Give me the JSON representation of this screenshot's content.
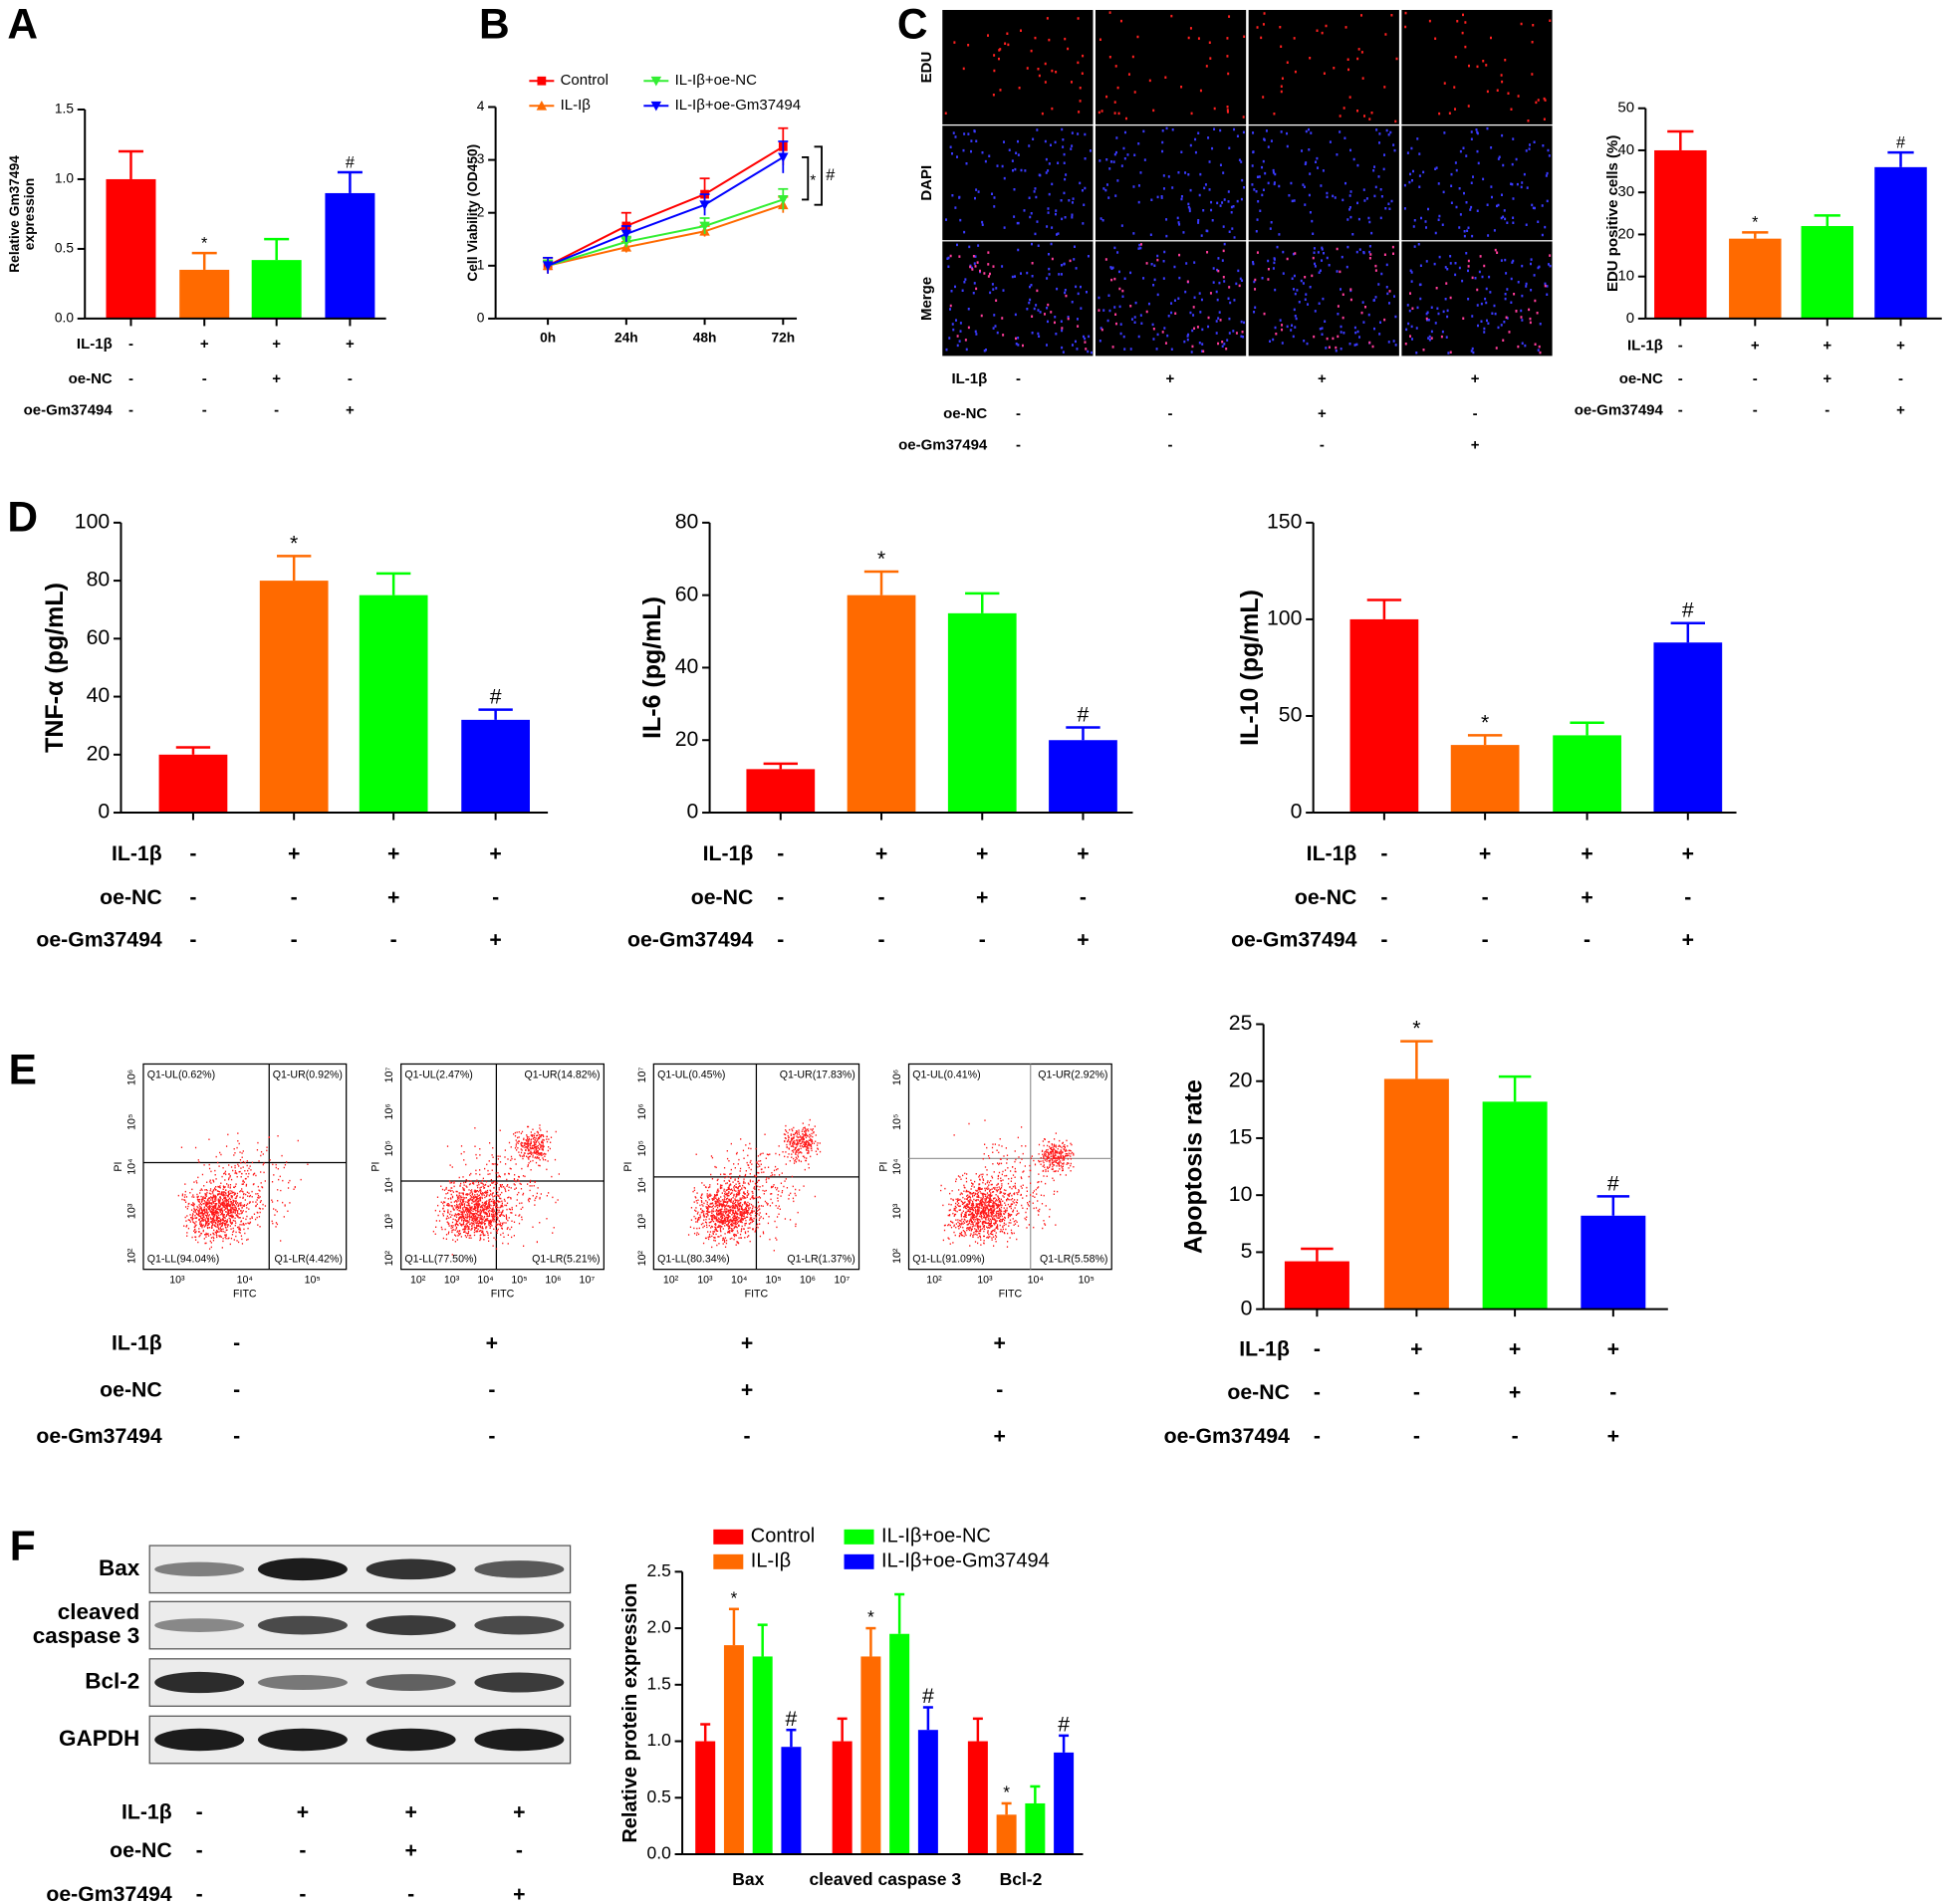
{
  "chart_data": [
    {
      "type": "bar",
      "panel": "A",
      "ylabel": [
        "Relative Gm37494",
        "expression"
      ],
      "values": [
        1.0,
        0.35,
        0.42,
        0.9
      ],
      "errors": [
        0.2,
        0.12,
        0.15,
        0.15
      ],
      "value_annotations": [
        null,
        "*",
        null,
        "#"
      ],
      "colors": [
        "#ff0000",
        "#ff6a00",
        "#00ff00",
        "#0000ff"
      ],
      "ylim": [
        0,
        1.5
      ],
      "yticks": [
        {
          "value": 0,
          "label": "0.0"
        },
        0.5,
        {
          "value": 1,
          "label": "1.0"
        },
        1.5
      ],
      "conditions": [
        {
          "label": "IL-1β",
          "signs": [
            "-",
            "+",
            "+",
            "+"
          ]
        },
        {
          "label": "oe-NC",
          "signs": [
            "-",
            "-",
            "+",
            "-"
          ]
        },
        {
          "label": "oe-Gm37494",
          "signs": [
            "-",
            "-",
            "-",
            "+"
          ]
        }
      ]
    },
    {
      "type": "line",
      "panel": "B",
      "ylabel": "Cell Viability (OD450)",
      "categories": [
        "0h",
        "24h",
        "48h",
        "72h"
      ],
      "series": [
        {
          "name": "Control",
          "color": "#ff0000",
          "marker": "square",
          "values": [
            1.0,
            1.75,
            2.35,
            3.25
          ],
          "errors": [
            0.15,
            0.25,
            0.3,
            0.35
          ]
        },
        {
          "name": "IL-Iβ",
          "color": "#ff6a00",
          "marker": "triangle-up",
          "values": [
            1.0,
            1.35,
            1.65,
            2.15
          ],
          "errors": [
            0.1,
            0.1,
            0.1,
            0.15
          ]
        },
        {
          "name": "IL-Iβ+oe-NC",
          "color": "#33ee33",
          "marker": "triangle-down",
          "values": [
            1.0,
            1.45,
            1.75,
            2.25
          ],
          "errors": [
            0.1,
            0.1,
            0.15,
            0.2
          ]
        },
        {
          "name": "IL-Iβ+oe-Gm37494",
          "color": "#0000ff",
          "marker": "triangle-down",
          "values": [
            1.0,
            1.6,
            2.15,
            3.05
          ],
          "errors": [
            0.15,
            0.15,
            0.2,
            0.3
          ]
        }
      ],
      "ylim": [
        0,
        4
      ],
      "yticks": [
        0,
        1,
        2,
        3,
        4
      ],
      "significance": [
        "*",
        "#"
      ]
    },
    {
      "type": "image-grid",
      "panel": "C",
      "row_labels": [
        "EDU",
        "DAPI",
        "Merge"
      ],
      "conditions": [
        {
          "label": "IL-1β",
          "signs": [
            "-",
            "+",
            "+",
            "+"
          ]
        },
        {
          "label": "oe-NC",
          "signs": [
            "-",
            "-",
            "+",
            "-"
          ]
        },
        {
          "label": "oe-Gm37494",
          "signs": [
            "-",
            "-",
            "-",
            "+"
          ]
        }
      ]
    },
    {
      "type": "bar",
      "ylabel": "EDU positive cells (%)",
      "values": [
        40,
        19,
        22,
        36
      ],
      "errors": [
        4.5,
        1.5,
        2.5,
        3.5
      ],
      "value_annotations": [
        null,
        "*",
        null,
        "#"
      ],
      "colors": [
        "#ff0000",
        "#ff6a00",
        "#00ff00",
        "#0000ff"
      ],
      "ylim": [
        0,
        50
      ],
      "yticks": [
        0,
        10,
        20,
        30,
        40,
        50
      ],
      "conditions": [
        {
          "label": "IL-1β",
          "signs": [
            "-",
            "+",
            "+",
            "+"
          ]
        },
        {
          "label": "oe-NC",
          "signs": [
            "-",
            "-",
            "+",
            "-"
          ]
        },
        {
          "label": "oe-Gm37494",
          "signs": [
            "-",
            "-",
            "-",
            "+"
          ]
        }
      ]
    },
    {
      "type": "bar",
      "panel": "D",
      "ylabel": "TNF-α (pg/mL)",
      "values": [
        20,
        80,
        75,
        32
      ],
      "errors": [
        2.5,
        8.5,
        7.5,
        3.5
      ],
      "value_annotations": [
        null,
        "*",
        null,
        "#"
      ],
      "colors": [
        "#ff0000",
        "#ff6a00",
        "#00ff00",
        "#0000ff"
      ],
      "ylim": [
        0,
        100
      ],
      "yticks": [
        0,
        20,
        40,
        60,
        80,
        100
      ],
      "conditions": [
        {
          "label": "IL-1β",
          "signs": [
            "-",
            "+",
            "+",
            "+"
          ]
        },
        {
          "label": "oe-NC",
          "signs": [
            "-",
            "-",
            "+",
            "-"
          ]
        },
        {
          "label": "oe-Gm37494",
          "signs": [
            "-",
            "-",
            "-",
            "+"
          ]
        }
      ]
    },
    {
      "type": "bar",
      "ylabel": "IL-6 (pg/mL)",
      "values": [
        12,
        60,
        55,
        20
      ],
      "errors": [
        1.5,
        6.5,
        5.5,
        3.5
      ],
      "value_annotations": [
        null,
        "*",
        null,
        "#"
      ],
      "colors": [
        "#ff0000",
        "#ff6a00",
        "#00ff00",
        "#0000ff"
      ],
      "ylim": [
        0,
        80
      ],
      "yticks": [
        0,
        20,
        40,
        60,
        80
      ],
      "conditions": [
        {
          "label": "IL-1β",
          "signs": [
            "-",
            "+",
            "+",
            "+"
          ]
        },
        {
          "label": "oe-NC",
          "signs": [
            "-",
            "-",
            "+",
            "-"
          ]
        },
        {
          "label": "oe-Gm37494",
          "signs": [
            "-",
            "-",
            "-",
            "+"
          ]
        }
      ]
    },
    {
      "type": "bar",
      "ylabel": "IL-10 (pg/mL)",
      "values": [
        100,
        35,
        40,
        88
      ],
      "errors": [
        10,
        5,
        6.5,
        10
      ],
      "value_annotations": [
        null,
        "*",
        null,
        "#"
      ],
      "colors": [
        "#ff0000",
        "#ff6a00",
        "#00ff00",
        "#0000ff"
      ],
      "ylim": [
        0,
        150
      ],
      "yticks": [
        0,
        50,
        100,
        150
      ],
      "conditions": [
        {
          "label": "IL-1β",
          "signs": [
            "-",
            "+",
            "+",
            "+"
          ]
        },
        {
          "label": "oe-NC",
          "signs": [
            "-",
            "-",
            "+",
            "-"
          ]
        },
        {
          "label": "oe-Gm37494",
          "signs": [
            "-",
            "-",
            "-",
            "+"
          ]
        }
      ]
    },
    {
      "type": "flow",
      "panel": "E",
      "xlabel": "FITC",
      "ylabel": "PI",
      "plots": [
        {
          "quadrants": [
            "Q1-UL(0.62%)",
            "Q1-UR(0.92%)",
            "Q1-LL(94.04%)",
            "Q1-LR(4.42%)"
          ],
          "xticks": [
            "10³",
            "10⁴",
            "10⁵"
          ],
          "yticks": [
            "10²",
            "10³",
            "10⁴",
            "10⁵",
            "10⁶"
          ]
        },
        {
          "quadrants": [
            "Q1-UL(2.47%)",
            "Q1-UR(14.82%)",
            "Q1-LL(77.50%)",
            "Q1-LR(5.21%)"
          ],
          "xticks": [
            "10²",
            "10³",
            "10⁴",
            "10⁵",
            "10⁶",
            "10⁷"
          ],
          "yticks": [
            "10²",
            "10³",
            "10⁴",
            "10⁵",
            "10⁶",
            "10⁷"
          ]
        },
        {
          "quadrants": [
            "Q1-UL(0.45%)",
            "Q1-UR(17.83%)",
            "Q1-LL(80.34%)",
            "Q1-LR(1.37%)"
          ],
          "xticks": [
            "10²",
            "10³",
            "10⁴",
            "10⁵",
            "10⁶",
            "10⁷"
          ],
          "yticks": [
            "10²",
            "10³",
            "10⁴",
            "10⁵",
            "10⁶",
            "10⁷"
          ]
        },
        {
          "quadrants": [
            "Q1-UL(0.41%)",
            "Q1-UR(2.92%)",
            "Q1-LL(91.09%)",
            "Q1-LR(5.58%)"
          ],
          "xticks": [
            "10²",
            "10³",
            "10⁴",
            "10⁵"
          ],
          "yticks": [
            "10²",
            "10³",
            "10⁴",
            "10⁵",
            "10⁶"
          ]
        }
      ],
      "conditions": [
        {
          "label": "IL-1β",
          "signs": [
            "-",
            "+",
            "+",
            "+"
          ]
        },
        {
          "label": "oe-NC",
          "signs": [
            "-",
            "-",
            "+",
            "-"
          ]
        },
        {
          "label": "oe-Gm37494",
          "signs": [
            "-",
            "-",
            "-",
            "+"
          ]
        }
      ]
    },
    {
      "type": "bar",
      "ylabel": "Apoptosis rate",
      "values": [
        4.2,
        20.2,
        18.2,
        8.2
      ],
      "errors": [
        1.1,
        3.3,
        2.2,
        1.7
      ],
      "value_annotations": [
        null,
        "*",
        null,
        "#"
      ],
      "colors": [
        "#ff0000",
        "#ff6a00",
        "#00ff00",
        "#0000ff"
      ],
      "ylim": [
        0,
        25
      ],
      "yticks": [
        0,
        5,
        10,
        15,
        20,
        25
      ],
      "conditions": [
        {
          "label": "IL-1β",
          "signs": [
            "-",
            "+",
            "+",
            "+"
          ]
        },
        {
          "label": "oe-NC",
          "signs": [
            "-",
            "-",
            "+",
            "-"
          ]
        },
        {
          "label": "oe-Gm37494",
          "signs": [
            "-",
            "-",
            "-",
            "+"
          ]
        }
      ]
    },
    {
      "type": "blot",
      "panel": "F",
      "bands": [
        [
          "Bax"
        ],
        [
          "cleaved",
          "caspase 3"
        ],
        [
          "Bcl-2"
        ],
        [
          "GAPDH"
        ]
      ],
      "conditions": [
        {
          "label": "IL-1β",
          "signs": [
            "-",
            "+",
            "+",
            "+"
          ]
        },
        {
          "label": "oe-NC",
          "signs": [
            "-",
            "-",
            "+",
            "-"
          ]
        },
        {
          "label": "oe-Gm37494",
          "signs": [
            "-",
            "-",
            "-",
            "+"
          ]
        }
      ]
    },
    {
      "type": "grouped-bar",
      "ylabel": "Relative protein expression",
      "categories": [
        "Bax",
        "cleaved caspase 3",
        "Bcl-2"
      ],
      "series": [
        {
          "name": "Control",
          "color": "#ff0000",
          "values": [
            1.0,
            1.0,
            1.0
          ],
          "errors": [
            0.15,
            0.2,
            0.2
          ],
          "value_annotations": [
            null,
            null,
            null
          ]
        },
        {
          "name": "IL-Iβ",
          "color": "#ff6a00",
          "values": [
            1.85,
            1.75,
            0.35
          ],
          "errors": [
            0.32,
            0.25,
            0.1
          ],
          "value_annotations": [
            "*",
            "*",
            "*"
          ]
        },
        {
          "name": "IL-Iβ+oe-NC",
          "color": "#00ff00",
          "values": [
            1.75,
            1.95,
            0.45
          ],
          "errors": [
            0.28,
            0.35,
            0.15
          ],
          "value_annotations": [
            null,
            null,
            null
          ]
        },
        {
          "name": "IL-Iβ+oe-Gm37494",
          "color": "#0000ff",
          "values": [
            0.95,
            1.1,
            0.9
          ],
          "errors": [
            0.15,
            0.2,
            0.15
          ],
          "value_annotations": [
            "#",
            "#",
            "#"
          ]
        }
      ],
      "ylim": [
        0,
        2.5
      ],
      "yticks": [
        {
          "value": 0,
          "label": "0.0"
        },
        0.5,
        {
          "value": 1,
          "label": "1.0"
        },
        1.5,
        {
          "value": 2,
          "label": "2.0"
        },
        2.5
      ]
    }
  ]
}
